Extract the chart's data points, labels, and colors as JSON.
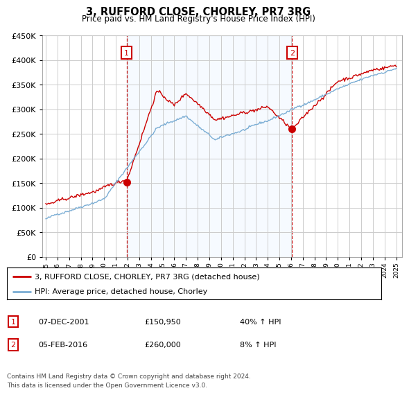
{
  "title": "3, RUFFORD CLOSE, CHORLEY, PR7 3RG",
  "subtitle": "Price paid vs. HM Land Registry's House Price Index (HPI)",
  "legend_line1": "3, RUFFORD CLOSE, CHORLEY, PR7 3RG (detached house)",
  "legend_line2": "HPI: Average price, detached house, Chorley",
  "footer": "Contains HM Land Registry data © Crown copyright and database right 2024.\nThis data is licensed under the Open Government Licence v3.0.",
  "sale1_label": "1",
  "sale1_date": "07-DEC-2001",
  "sale1_price": "£150,950",
  "sale1_hpi": "40% ↑ HPI",
  "sale2_label": "2",
  "sale2_date": "05-FEB-2016",
  "sale2_price": "£260,000",
  "sale2_hpi": "8% ↑ HPI",
  "sale1_year": 2001.92,
  "sale2_year": 2016.09,
  "sale1_price_val": 150950,
  "sale2_price_val": 260000,
  "red_color": "#cc0000",
  "blue_color": "#7aadd4",
  "shade_color": "#ddeeff",
  "vline_color": "#cc0000",
  "grid_color": "#cccccc",
  "ylim": [
    0,
    450000
  ],
  "xlim": [
    1994.7,
    2025.5
  ]
}
